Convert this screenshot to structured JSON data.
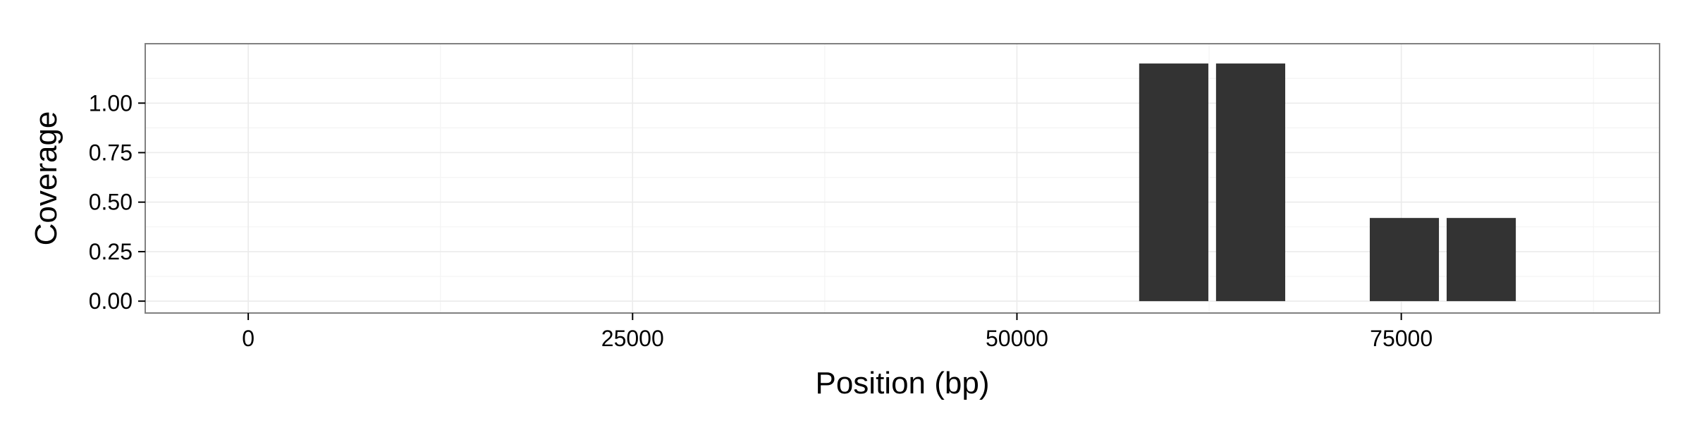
{
  "chart_data": {
    "type": "bar",
    "xlabel": "Position (bp)",
    "ylabel": "Coverage",
    "x_ticks": [
      0,
      25000,
      50000,
      75000
    ],
    "x_tick_labels": [
      "0",
      "25000",
      "50000",
      "75000"
    ],
    "y_ticks": [
      0,
      0.25,
      0.5,
      0.75,
      1
    ],
    "y_tick_labels": [
      "0.00",
      "0.25",
      "0.50",
      "0.75",
      "1.00"
    ],
    "xlim": [
      -6700,
      91800
    ],
    "ylim": [
      -0.06,
      1.3
    ],
    "grid": true,
    "bar_width": 4500,
    "bars": [
      {
        "x": 60200,
        "value": 1.2
      },
      {
        "x": 65200,
        "value": 1.2
      },
      {
        "x": 75200,
        "value": 0.42
      },
      {
        "x": 80200,
        "value": 0.42
      }
    ],
    "bar_color": "#333333",
    "panel_border_color": "#808080",
    "grid_color": "#ebebeb"
  }
}
